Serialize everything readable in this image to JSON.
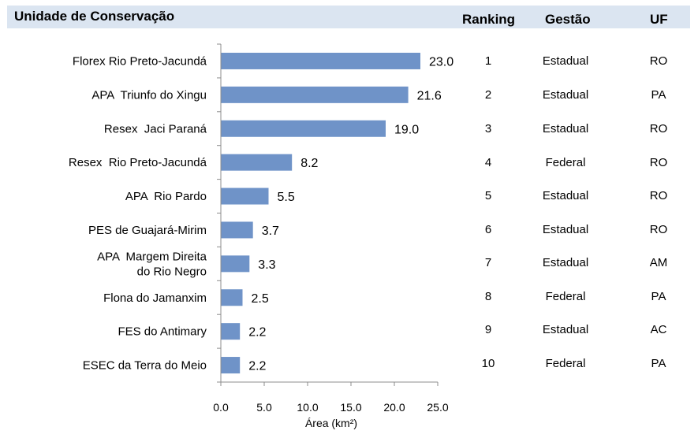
{
  "header": {
    "unidade": "Unidade de Conservação",
    "ranking": "Ranking",
    "gestao": "Gestão",
    "uf": "UF"
  },
  "chart_data": {
    "type": "bar",
    "orientation": "horizontal",
    "categories": [
      "Florex Rio Preto-Jacundá",
      "APA  Triunfo do Xingu",
      "Resex  Jaci Paraná",
      "Resex  Rio Preto-Jacundá",
      "APA  Rio Pardo",
      "PES de Guajará-Mirim",
      "APA  Margem Direita\ndo Rio Negro",
      "Flona do Jamanxim",
      "FES do Antimary",
      "ESEC da Terra do Meio"
    ],
    "values": [
      23.0,
      21.6,
      19.0,
      8.2,
      5.5,
      3.7,
      3.3,
      2.5,
      2.2,
      2.2
    ],
    "value_labels": [
      "23.0",
      "21.6",
      "19.0",
      "8.2",
      "5.5",
      "3.7",
      "3.3",
      "2.5",
      "2.2",
      "2.2"
    ],
    "xlabel": "Área (km²)",
    "xlim": [
      0,
      25
    ],
    "xticks": [
      "0.0",
      "5.0",
      "10.0",
      "15.0",
      "20.0",
      "25.0"
    ],
    "bar_color": "#6f93c8",
    "grid": false
  },
  "table": {
    "ranking": [
      "1",
      "2",
      "3",
      "4",
      "5",
      "6",
      "7",
      "8",
      "9",
      "10"
    ],
    "gestao": [
      "Estadual",
      "Estadual",
      "Estadual",
      "Federal",
      "Estadual",
      "Estadual",
      "Estadual",
      "Federal",
      "Estadual",
      "Federal"
    ],
    "uf": [
      "RO",
      "PA",
      "RO",
      "RO",
      "RO",
      "RO",
      "AM",
      "PA",
      "AC",
      "PA"
    ]
  }
}
